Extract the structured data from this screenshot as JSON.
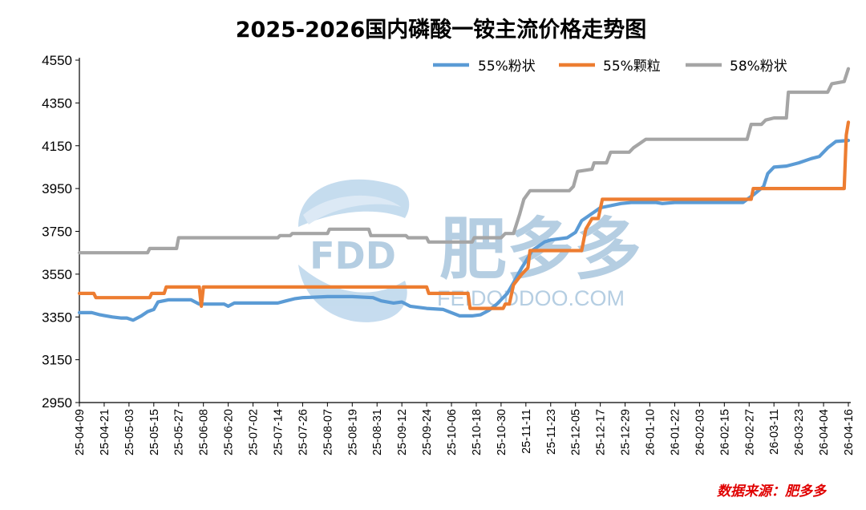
{
  "chart_data": {
    "type": "line",
    "title": "2025-2026国内磷酸一铵主流价格走势图",
    "ylim": [
      2950,
      4550
    ],
    "yticks": [
      2950,
      3150,
      3350,
      3550,
      3750,
      3950,
      4150,
      4350,
      4550
    ],
    "xlim": [
      "2025-04-09",
      "2026-04-16"
    ],
    "xtick_labels": [
      "25-04-09",
      "25-04-21",
      "25-05-03",
      "25-05-15",
      "25-05-27",
      "25-06-08",
      "25-06-20",
      "25-07-02",
      "25-07-14",
      "25-07-26",
      "25-08-07",
      "25-08-19",
      "25-08-31",
      "25-09-12",
      "25-09-24",
      "25-10-06",
      "25-10-18",
      "25-10-30",
      "25-11-11",
      "25-11-23",
      "25-12-05",
      "25-12-17",
      "25-12-29",
      "26-01-10",
      "26-01-22",
      "26-02-03",
      "26-02-15",
      "26-02-27",
      "26-03-11",
      "26-03-23",
      "26-04-04",
      "26-04-16"
    ],
    "grid": false,
    "legend_position": "top-right",
    "series": [
      {
        "name": "55%粉状",
        "color": "#5b9bd5",
        "points": [
          [
            "2025-04-09",
            3370
          ],
          [
            "2025-04-15",
            3370
          ],
          [
            "2025-04-19",
            3360
          ],
          [
            "2025-04-25",
            3350
          ],
          [
            "2025-04-29",
            3345
          ],
          [
            "2025-05-02",
            3345
          ],
          [
            "2025-05-05",
            3335
          ],
          [
            "2025-05-09",
            3355
          ],
          [
            "2025-05-12",
            3375
          ],
          [
            "2025-05-15",
            3385
          ],
          [
            "2025-05-17",
            3420
          ],
          [
            "2025-05-22",
            3430
          ],
          [
            "2025-06-02",
            3430
          ],
          [
            "2025-06-06",
            3410
          ],
          [
            "2025-06-18",
            3410
          ],
          [
            "2025-06-20",
            3400
          ],
          [
            "2025-06-23",
            3415
          ],
          [
            "2025-07-14",
            3415
          ],
          [
            "2025-07-18",
            3425
          ],
          [
            "2025-07-22",
            3435
          ],
          [
            "2025-07-26",
            3440
          ],
          [
            "2025-08-07",
            3445
          ],
          [
            "2025-08-19",
            3445
          ],
          [
            "2025-08-29",
            3440
          ],
          [
            "2025-09-02",
            3425
          ],
          [
            "2025-09-08",
            3415
          ],
          [
            "2025-09-12",
            3420
          ],
          [
            "2025-09-16",
            3400
          ],
          [
            "2025-09-24",
            3390
          ],
          [
            "2025-10-02",
            3385
          ],
          [
            "2025-10-06",
            3370
          ],
          [
            "2025-10-10",
            3355
          ],
          [
            "2025-10-16",
            3355
          ],
          [
            "2025-10-20",
            3360
          ],
          [
            "2025-10-24",
            3380
          ],
          [
            "2025-10-28",
            3410
          ],
          [
            "2025-11-02",
            3460
          ],
          [
            "2025-11-05",
            3510
          ],
          [
            "2025-11-09",
            3580
          ],
          [
            "2025-11-11",
            3610
          ],
          [
            "2025-11-14",
            3660
          ],
          [
            "2025-11-20",
            3700
          ],
          [
            "2025-11-23",
            3710
          ],
          [
            "2025-12-01",
            3720
          ],
          [
            "2025-12-05",
            3745
          ],
          [
            "2025-12-08",
            3800
          ],
          [
            "2025-12-11",
            3820
          ],
          [
            "2025-12-14",
            3840
          ],
          [
            "2025-12-17",
            3860
          ],
          [
            "2025-12-22",
            3870
          ],
          [
            "2025-12-27",
            3880
          ],
          [
            "2026-01-01",
            3885
          ],
          [
            "2026-01-13",
            3885
          ],
          [
            "2026-01-16",
            3880
          ],
          [
            "2026-01-22",
            3885
          ],
          [
            "2026-02-24",
            3885
          ],
          [
            "2026-03-01",
            3920
          ],
          [
            "2026-03-06",
            3960
          ],
          [
            "2026-03-08",
            4020
          ],
          [
            "2026-03-11",
            4050
          ],
          [
            "2026-03-17",
            4055
          ],
          [
            "2026-03-23",
            4070
          ],
          [
            "2026-03-29",
            4090
          ],
          [
            "2026-04-02",
            4100
          ],
          [
            "2026-04-06",
            4140
          ],
          [
            "2026-04-10",
            4170
          ],
          [
            "2026-04-16",
            4175
          ]
        ]
      },
      {
        "name": "55%颗粒",
        "color": "#ed7d31",
        "points": [
          [
            "2025-04-09",
            3460
          ],
          [
            "2025-04-16",
            3460
          ],
          [
            "2025-04-17",
            3440
          ],
          [
            "2025-05-13",
            3440
          ],
          [
            "2025-05-14",
            3460
          ],
          [
            "2025-05-20",
            3460
          ],
          [
            "2025-05-21",
            3490
          ],
          [
            "2025-06-06",
            3490
          ],
          [
            "2025-06-07",
            3400
          ],
          [
            "2025-06-08",
            3490
          ],
          [
            "2025-09-24",
            3490
          ],
          [
            "2025-09-25",
            3460
          ],
          [
            "2025-10-14",
            3460
          ],
          [
            "2025-10-15",
            3390
          ],
          [
            "2025-10-31",
            3390
          ],
          [
            "2025-11-01",
            3410
          ],
          [
            "2025-11-03",
            3410
          ],
          [
            "2025-11-05",
            3500
          ],
          [
            "2025-11-09",
            3550
          ],
          [
            "2025-11-12",
            3580
          ],
          [
            "2025-11-13",
            3660
          ],
          [
            "2025-12-08",
            3660
          ],
          [
            "2025-12-10",
            3760
          ],
          [
            "2025-12-13",
            3810
          ],
          [
            "2025-12-16",
            3810
          ],
          [
            "2025-12-18",
            3900
          ],
          [
            "2026-02-28",
            3900
          ],
          [
            "2026-03-01",
            3950
          ],
          [
            "2026-04-14",
            3950
          ],
          [
            "2026-04-15",
            4200
          ],
          [
            "2026-04-16",
            4260
          ]
        ]
      },
      {
        "name": "58%粉状",
        "color": "#a5a5a5",
        "points": [
          [
            "2025-04-09",
            3650
          ],
          [
            "2025-05-12",
            3650
          ],
          [
            "2025-05-13",
            3670
          ],
          [
            "2025-05-26",
            3670
          ],
          [
            "2025-05-27",
            3720
          ],
          [
            "2025-07-14",
            3720
          ],
          [
            "2025-07-15",
            3730
          ],
          [
            "2025-07-20",
            3730
          ],
          [
            "2025-07-21",
            3740
          ],
          [
            "2025-08-07",
            3740
          ],
          [
            "2025-08-08",
            3760
          ],
          [
            "2025-08-27",
            3760
          ],
          [
            "2025-08-28",
            3730
          ],
          [
            "2025-09-14",
            3730
          ],
          [
            "2025-09-15",
            3720
          ],
          [
            "2025-09-24",
            3720
          ],
          [
            "2025-09-25",
            3700
          ],
          [
            "2025-10-16",
            3700
          ],
          [
            "2025-10-17",
            3720
          ],
          [
            "2025-10-30",
            3720
          ],
          [
            "2025-11-01",
            3740
          ],
          [
            "2025-11-05",
            3740
          ],
          [
            "2025-11-08",
            3830
          ],
          [
            "2025-11-10",
            3900
          ],
          [
            "2025-11-13",
            3940
          ],
          [
            "2025-12-02",
            3940
          ],
          [
            "2025-12-04",
            3960
          ],
          [
            "2025-12-06",
            4030
          ],
          [
            "2025-12-13",
            4040
          ],
          [
            "2025-12-14",
            4070
          ],
          [
            "2025-12-20",
            4070
          ],
          [
            "2025-12-22",
            4120
          ],
          [
            "2025-12-31",
            4120
          ],
          [
            "2026-01-02",
            4140
          ],
          [
            "2026-01-05",
            4160
          ],
          [
            "2026-01-08",
            4180
          ],
          [
            "2026-02-26",
            4180
          ],
          [
            "2026-02-28",
            4250
          ],
          [
            "2026-03-05",
            4250
          ],
          [
            "2026-03-07",
            4270
          ],
          [
            "2026-03-11",
            4280
          ],
          [
            "2026-03-17",
            4280
          ],
          [
            "2026-03-18",
            4400
          ],
          [
            "2026-04-06",
            4400
          ],
          [
            "2026-04-08",
            4440
          ],
          [
            "2026-04-14",
            4450
          ],
          [
            "2026-04-16",
            4510
          ]
        ]
      }
    ]
  },
  "watermark": {
    "logo_text": "FDD",
    "brand": "肥多多",
    "url": "FEIDODDOO.COM"
  },
  "source_note": "数据来源：肥多多"
}
